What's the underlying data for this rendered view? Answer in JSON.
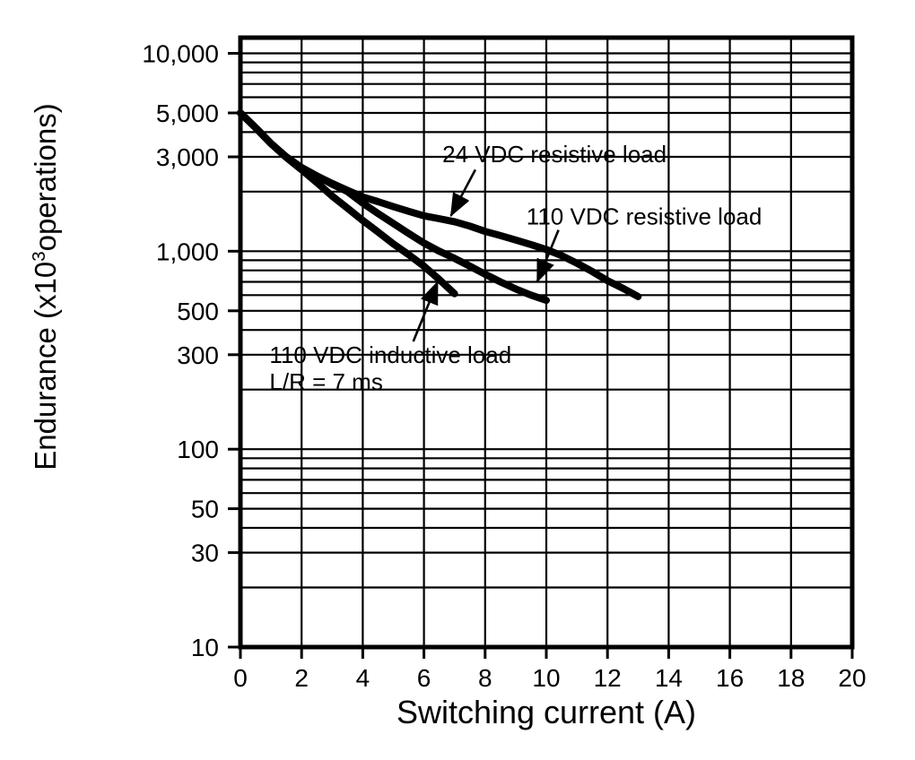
{
  "page": {
    "background": "#ffffff",
    "ink": "#000000"
  },
  "chart_data": {
    "type": "line",
    "title": "",
    "xlabel": "Switching current (A)",
    "ylabel": "Endurance (x10^3 operations)",
    "ylabel_parts": {
      "prefix": "Endurance (x10",
      "sup": "3",
      "suffix": "operations)"
    },
    "x_axis": {
      "scale": "linear",
      "min": 0,
      "max": 20,
      "ticks": [
        0,
        2,
        4,
        6,
        8,
        10,
        12,
        14,
        16,
        18,
        20
      ]
    },
    "y_axis": {
      "scale": "log",
      "min": 10,
      "max": 12000,
      "unit": "x10^3 operations",
      "labeled_ticks": [
        {
          "value": 10000,
          "label": "10,000"
        },
        {
          "value": 5000,
          "label": "5,000"
        },
        {
          "value": 3000,
          "label": "3,000"
        },
        {
          "value": 1000,
          "label": "1,000"
        },
        {
          "value": 500,
          "label": "500"
        },
        {
          "value": 300,
          "label": "300"
        },
        {
          "value": 100,
          "label": "100"
        },
        {
          "value": 50,
          "label": "50"
        },
        {
          "value": 30,
          "label": "30"
        },
        {
          "value": 10,
          "label": "10"
        }
      ]
    },
    "grid": "full log minor gridlines horizontal, vertical every 2 A",
    "series": [
      {
        "id": "24vdc-resistive",
        "name": "24 VDC resistive load",
        "points": [
          [
            0,
            5000
          ],
          [
            0.5,
            4200
          ],
          [
            1,
            3500
          ],
          [
            1.5,
            3000
          ],
          [
            2,
            2650
          ],
          [
            2.5,
            2400
          ],
          [
            3,
            2200
          ],
          [
            3.5,
            2030
          ],
          [
            4,
            1880
          ],
          [
            4.5,
            1780
          ],
          [
            5,
            1680
          ],
          [
            5.5,
            1590
          ],
          [
            6,
            1510
          ],
          [
            6.5,
            1460
          ],
          [
            7,
            1410
          ],
          [
            7.5,
            1340
          ],
          [
            8,
            1260
          ],
          [
            8.5,
            1200
          ],
          [
            9,
            1140
          ],
          [
            9.5,
            1080
          ],
          [
            10,
            1020
          ],
          [
            10.5,
            950
          ],
          [
            11,
            870
          ],
          [
            11.5,
            790
          ],
          [
            12,
            710
          ],
          [
            12.5,
            650
          ],
          [
            13,
            590
          ]
        ]
      },
      {
        "id": "110vdc-resistive",
        "name": "110 VDC resistive load",
        "points": [
          [
            0,
            5000
          ],
          [
            0.5,
            4200
          ],
          [
            1,
            3500
          ],
          [
            1.5,
            3000
          ],
          [
            2,
            2640
          ],
          [
            2.5,
            2400
          ],
          [
            3,
            2180
          ],
          [
            3.5,
            2000
          ],
          [
            4,
            1750
          ],
          [
            4.5,
            1550
          ],
          [
            5,
            1380
          ],
          [
            5.5,
            1230
          ],
          [
            6,
            1100
          ],
          [
            6.5,
            1000
          ],
          [
            7,
            920
          ],
          [
            7.5,
            840
          ],
          [
            8,
            765
          ],
          [
            8.5,
            700
          ],
          [
            9,
            645
          ],
          [
            9.5,
            600
          ],
          [
            10,
            565
          ]
        ]
      },
      {
        "id": "110vdc-inductive",
        "name": "110 VDC inductive load L/R = 7 ms",
        "points": [
          [
            0,
            5000
          ],
          [
            0.5,
            4200
          ],
          [
            1,
            3500
          ],
          [
            1.5,
            2980
          ],
          [
            2,
            2580
          ],
          [
            2.5,
            2220
          ],
          [
            3,
            1900
          ],
          [
            3.5,
            1650
          ],
          [
            4,
            1430
          ],
          [
            4.5,
            1250
          ],
          [
            5,
            1090
          ],
          [
            5.5,
            960
          ],
          [
            6,
            840
          ],
          [
            6.5,
            720
          ],
          [
            7,
            610
          ]
        ]
      }
    ],
    "annotations": [
      {
        "id": "label-24vdc-resistive",
        "lines": [
          "24 VDC resistive load"
        ],
        "x": 6.6,
        "y": 3100,
        "arrow": {
          "from": [
            7.68,
            2580
          ],
          "to": [
            6.88,
            1510
          ]
        }
      },
      {
        "id": "label-110vdc-resistive",
        "lines": [
          "110 VDC resistive load"
        ],
        "x": 9.35,
        "y": 1500,
        "arrow": {
          "from": [
            10.4,
            1280
          ],
          "to": [
            9.7,
            700
          ]
        }
      },
      {
        "id": "label-110vdc-inductive",
        "lines": [
          "110 VDC inductive load",
          "L/R = 7 ms"
        ],
        "x": 0.95,
        "y": 300,
        "arrow": {
          "from": [
            5.65,
            350
          ],
          "to": [
            6.45,
            700
          ]
        }
      }
    ]
  }
}
